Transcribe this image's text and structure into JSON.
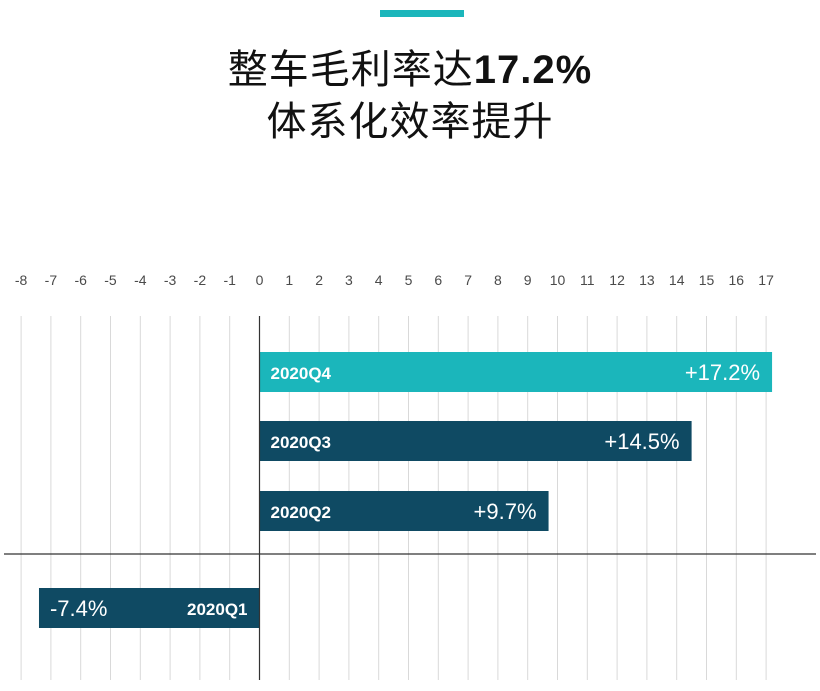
{
  "header": {
    "title_prefix": "整车毛利率达",
    "title_highlight": "17.2%",
    "title_line2": "体系化效率提升"
  },
  "colors": {
    "accent": "#1bb6bb",
    "bar_highlight": "#1bb6bb",
    "bar_default": "#0f4a63",
    "grid": "#d9d9d9",
    "axis": "#333333"
  },
  "chart_data": {
    "type": "bar",
    "orientation": "horizontal",
    "title": "整车毛利率达17.2% 体系化效率提升",
    "xlim": [
      -8,
      17
    ],
    "x_ticks": [
      "-8",
      "-7",
      "-6",
      "-5",
      "-4",
      "-3",
      "-2",
      "-1",
      "0",
      "1",
      "2",
      "3",
      "4",
      "5",
      "6",
      "7",
      "8",
      "9",
      "10",
      "11",
      "12",
      "13",
      "14",
      "15",
      "16",
      "17"
    ],
    "grid": true,
    "categories": [
      "2020Q4",
      "2020Q3",
      "2020Q2",
      "2020Q1"
    ],
    "values": [
      17.2,
      14.5,
      9.7,
      -7.4
    ],
    "value_labels": [
      "+17.2%",
      "+14.5%",
      "+9.7%",
      "-7.4%"
    ],
    "highlight": "2020Q4"
  }
}
